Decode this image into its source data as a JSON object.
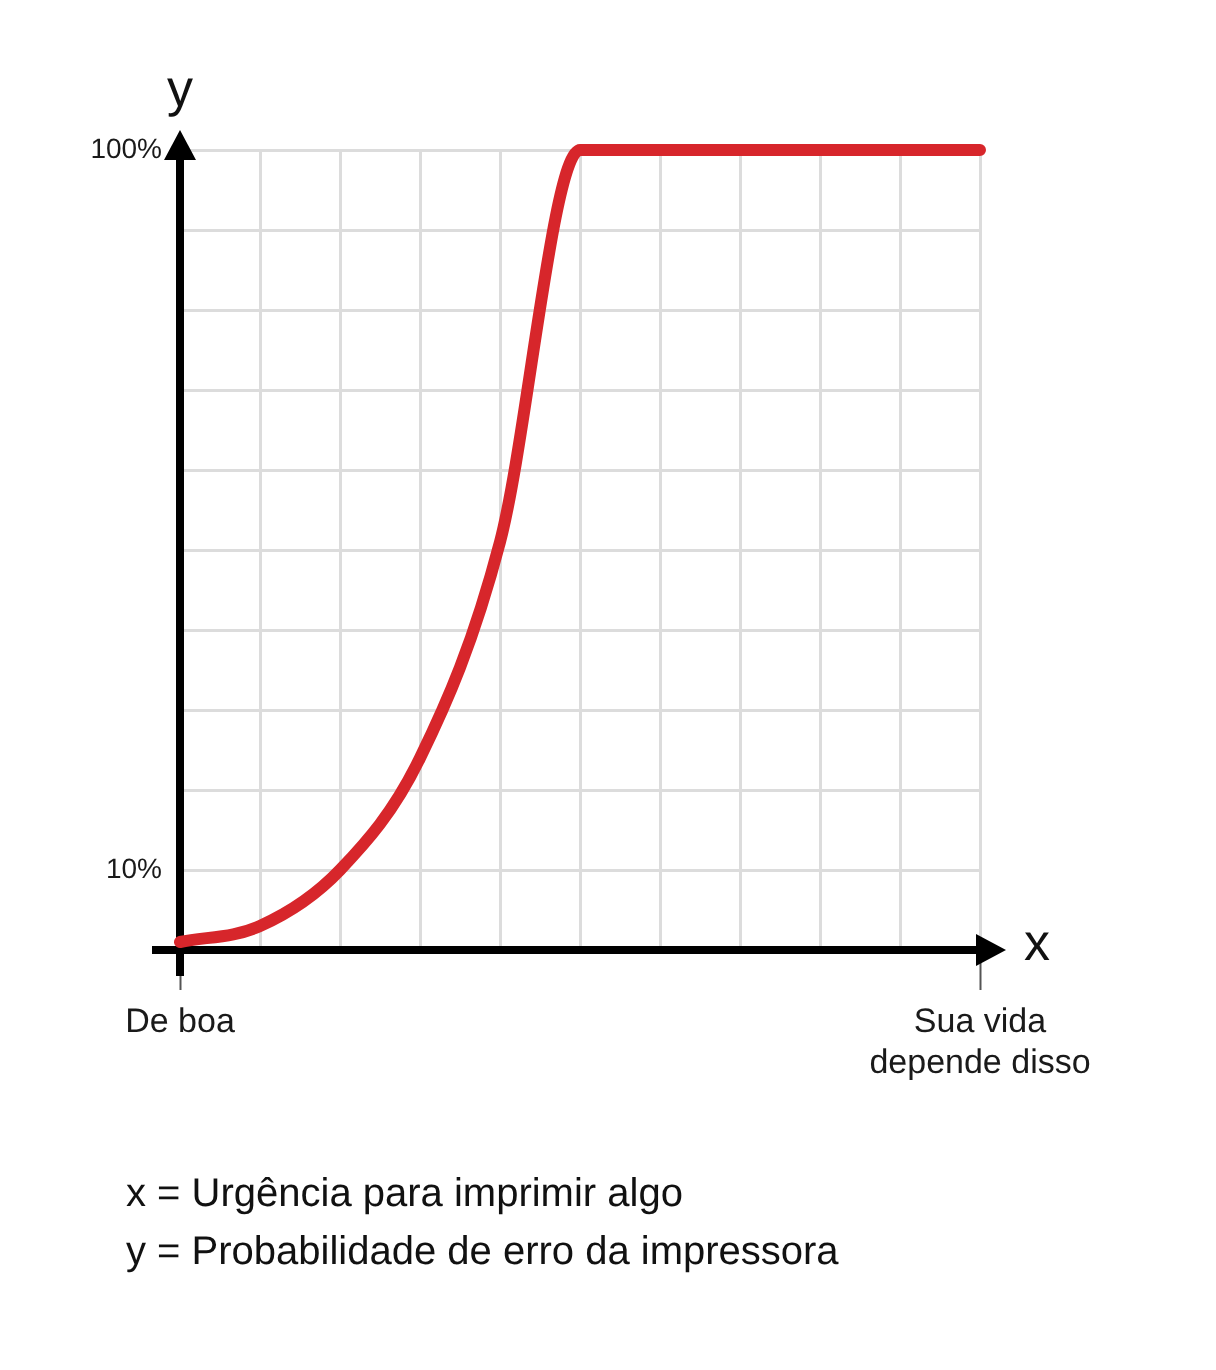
{
  "chart_data": {
    "type": "line",
    "xlabel": "x",
    "ylabel": "y",
    "categories": [
      "De boa",
      null,
      null,
      null,
      null,
      null,
      null,
      null,
      null,
      null,
      "Sua vida depende disso"
    ],
    "values": [
      1,
      3,
      10,
      24,
      51,
      100,
      100,
      100,
      100,
      100,
      100
    ],
    "color": "#d7262b",
    "ylim": [
      0,
      100
    ],
    "yticks": [
      {
        "value": 10,
        "label": "10%"
      },
      {
        "value": 20,
        "label": null
      },
      {
        "value": 30,
        "label": null
      },
      {
        "value": 40,
        "label": null
      },
      {
        "value": 50,
        "label": null
      },
      {
        "value": 60,
        "label": null
      },
      {
        "value": 70,
        "label": null
      },
      {
        "value": 80,
        "label": null
      },
      {
        "value": 90,
        "label": null
      },
      {
        "value": 100,
        "label": "100%"
      }
    ],
    "grid": true,
    "annotations": [
      "x = Urgência para imprimir algo",
      "y = Probabilidade de erro da impressora"
    ]
  }
}
